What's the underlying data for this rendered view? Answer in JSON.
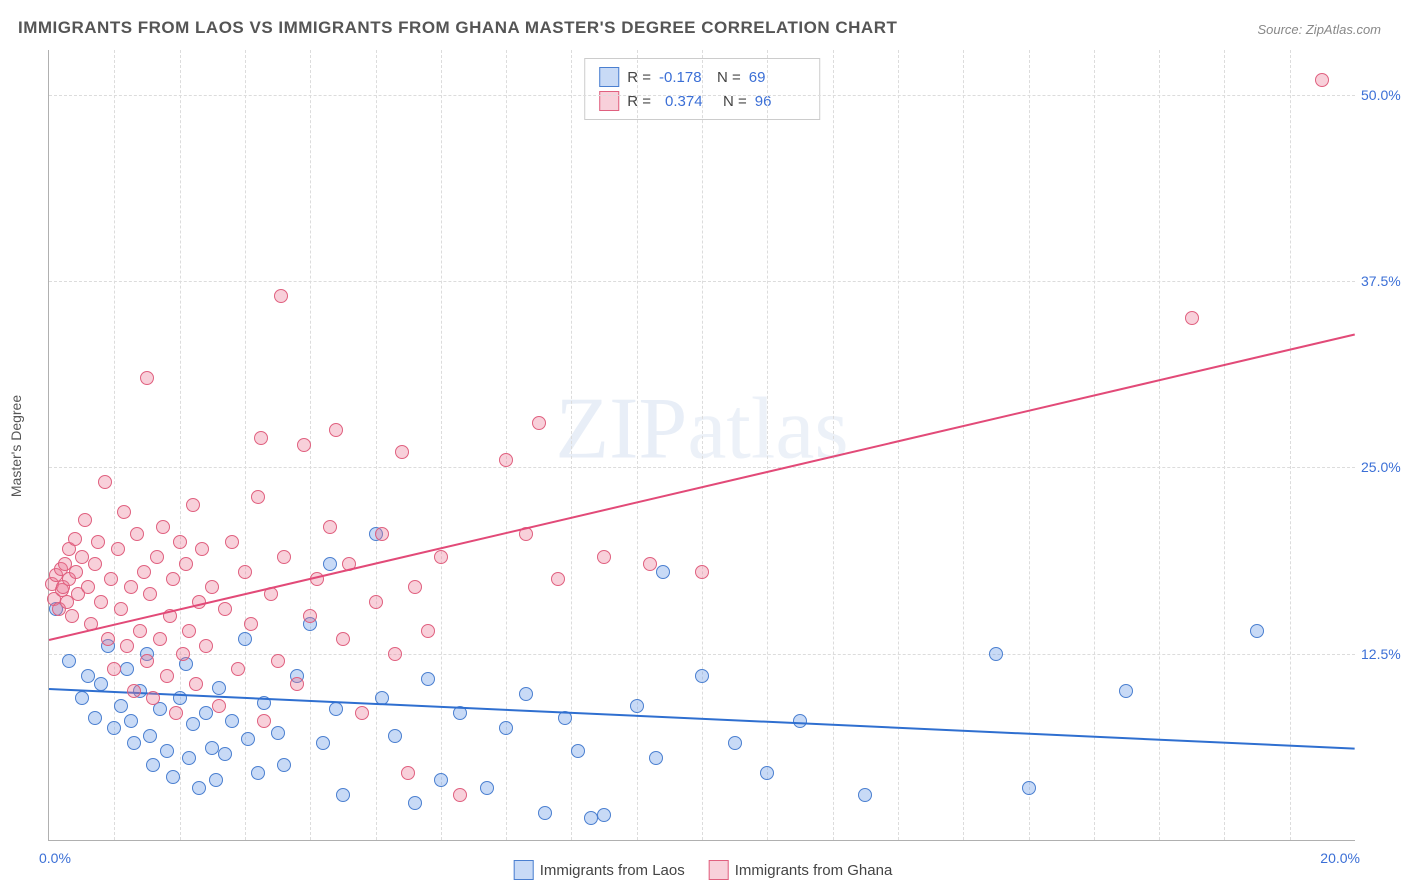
{
  "title": "IMMIGRANTS FROM LAOS VS IMMIGRANTS FROM GHANA MASTER'S DEGREE CORRELATION CHART",
  "source": "Source: ZipAtlas.com",
  "yaxis_title": "Master's Degree",
  "watermark_a": "ZIP",
  "watermark_b": "atlas",
  "chart": {
    "type": "scatter",
    "xlim": [
      0,
      20
    ],
    "ylim": [
      0,
      53
    ],
    "xtick_labels": {
      "0": "0.0%",
      "20": "20.0%"
    },
    "ytick_labels": {
      "12.5": "12.5%",
      "25": "25.0%",
      "37.5": "37.5%",
      "50": "50.0%"
    },
    "x_gridlines": [
      1,
      2,
      3,
      4,
      5,
      6,
      7,
      8,
      9,
      10,
      11,
      12,
      13,
      14,
      15,
      16,
      17,
      18,
      19
    ],
    "y_gridlines": [
      12.5,
      25,
      37.5,
      50
    ],
    "background_color": "#ffffff",
    "grid_color": "#dcdcdc",
    "marker_radius": 7,
    "marker_border": 1.2,
    "series": [
      {
        "name": "Immigrants from Laos",
        "fill": "rgba(96,150,230,0.35)",
        "stroke": "#4a7fd0",
        "r_label": "R =",
        "r_value": "-0.178",
        "n_label": "N =",
        "n_value": "69",
        "trend": {
          "x1": 0,
          "y1": 10.2,
          "x2": 20,
          "y2": 6.2,
          "color": "#2f6fd0",
          "width": 2
        },
        "points": [
          [
            0.1,
            15.5
          ],
          [
            0.3,
            12.0
          ],
          [
            0.5,
            9.5
          ],
          [
            0.6,
            11.0
          ],
          [
            0.7,
            8.2
          ],
          [
            0.8,
            10.5
          ],
          [
            0.9,
            13.0
          ],
          [
            1.0,
            7.5
          ],
          [
            1.1,
            9.0
          ],
          [
            1.2,
            11.5
          ],
          [
            1.25,
            8.0
          ],
          [
            1.3,
            6.5
          ],
          [
            1.4,
            10.0
          ],
          [
            1.5,
            12.5
          ],
          [
            1.55,
            7.0
          ],
          [
            1.6,
            5.0
          ],
          [
            1.7,
            8.8
          ],
          [
            1.8,
            6.0
          ],
          [
            1.9,
            4.2
          ],
          [
            2.0,
            9.5
          ],
          [
            2.1,
            11.8
          ],
          [
            2.15,
            5.5
          ],
          [
            2.2,
            7.8
          ],
          [
            2.3,
            3.5
          ],
          [
            2.4,
            8.5
          ],
          [
            2.5,
            6.2
          ],
          [
            2.55,
            4.0
          ],
          [
            2.6,
            10.2
          ],
          [
            2.7,
            5.8
          ],
          [
            2.8,
            8.0
          ],
          [
            3.0,
            13.5
          ],
          [
            3.05,
            6.8
          ],
          [
            3.2,
            4.5
          ],
          [
            3.3,
            9.2
          ],
          [
            3.5,
            7.2
          ],
          [
            3.6,
            5.0
          ],
          [
            3.8,
            11.0
          ],
          [
            4.0,
            14.5
          ],
          [
            4.2,
            6.5
          ],
          [
            4.3,
            18.5
          ],
          [
            4.4,
            8.8
          ],
          [
            4.5,
            3.0
          ],
          [
            5.0,
            20.5
          ],
          [
            5.1,
            9.5
          ],
          [
            5.3,
            7.0
          ],
          [
            5.6,
            2.5
          ],
          [
            5.8,
            10.8
          ],
          [
            6.0,
            4.0
          ],
          [
            6.3,
            8.5
          ],
          [
            6.7,
            3.5
          ],
          [
            7.0,
            7.5
          ],
          [
            7.3,
            9.8
          ],
          [
            7.6,
            1.8
          ],
          [
            7.9,
            8.2
          ],
          [
            8.1,
            6.0
          ],
          [
            8.3,
            1.5
          ],
          [
            8.5,
            1.7
          ],
          [
            9.0,
            9.0
          ],
          [
            9.3,
            5.5
          ],
          [
            9.4,
            18.0
          ],
          [
            10.0,
            11.0
          ],
          [
            10.5,
            6.5
          ],
          [
            11.0,
            4.5
          ],
          [
            11.5,
            8.0
          ],
          [
            12.5,
            3.0
          ],
          [
            14.5,
            12.5
          ],
          [
            15.0,
            3.5
          ],
          [
            16.5,
            10.0
          ],
          [
            18.5,
            14.0
          ]
        ]
      },
      {
        "name": "Immigrants from Ghana",
        "fill": "rgba(235,120,150,0.35)",
        "stroke": "#e0607f",
        "r_label": "R =",
        "r_value": "0.374",
        "n_label": "N =",
        "n_value": "96",
        "trend": {
          "x1": 0,
          "y1": 13.5,
          "x2": 20,
          "y2": 34.0,
          "color": "#e24a78",
          "width": 2
        },
        "points": [
          [
            0.05,
            17.2
          ],
          [
            0.08,
            16.2
          ],
          [
            0.1,
            17.8
          ],
          [
            0.15,
            15.5
          ],
          [
            0.18,
            18.2
          ],
          [
            0.2,
            16.8
          ],
          [
            0.22,
            17.0
          ],
          [
            0.25,
            18.5
          ],
          [
            0.28,
            16.0
          ],
          [
            0.3,
            17.5
          ],
          [
            0.3,
            19.5
          ],
          [
            0.35,
            15.0
          ],
          [
            0.4,
            20.2
          ],
          [
            0.42,
            18.0
          ],
          [
            0.45,
            16.5
          ],
          [
            0.5,
            19.0
          ],
          [
            0.55,
            21.5
          ],
          [
            0.6,
            17.0
          ],
          [
            0.65,
            14.5
          ],
          [
            0.7,
            18.5
          ],
          [
            0.75,
            20.0
          ],
          [
            0.8,
            16.0
          ],
          [
            0.85,
            24.0
          ],
          [
            0.9,
            13.5
          ],
          [
            0.95,
            17.5
          ],
          [
            1.0,
            11.5
          ],
          [
            1.05,
            19.5
          ],
          [
            1.1,
            15.5
          ],
          [
            1.15,
            22.0
          ],
          [
            1.2,
            13.0
          ],
          [
            1.25,
            17.0
          ],
          [
            1.3,
            10.0
          ],
          [
            1.35,
            20.5
          ],
          [
            1.4,
            14.0
          ],
          [
            1.45,
            18.0
          ],
          [
            1.5,
            12.0
          ],
          [
            1.5,
            31.0
          ],
          [
            1.55,
            16.5
          ],
          [
            1.6,
            9.5
          ],
          [
            1.65,
            19.0
          ],
          [
            1.7,
            13.5
          ],
          [
            1.75,
            21.0
          ],
          [
            1.8,
            11.0
          ],
          [
            1.85,
            15.0
          ],
          [
            1.9,
            17.5
          ],
          [
            1.95,
            8.5
          ],
          [
            2.0,
            20.0
          ],
          [
            2.05,
            12.5
          ],
          [
            2.1,
            18.5
          ],
          [
            2.15,
            14.0
          ],
          [
            2.2,
            22.5
          ],
          [
            2.25,
            10.5
          ],
          [
            2.3,
            16.0
          ],
          [
            2.35,
            19.5
          ],
          [
            2.4,
            13.0
          ],
          [
            2.5,
            17.0
          ],
          [
            2.6,
            9.0
          ],
          [
            2.7,
            15.5
          ],
          [
            2.8,
            20.0
          ],
          [
            2.9,
            11.5
          ],
          [
            3.0,
            18.0
          ],
          [
            3.1,
            14.5
          ],
          [
            3.2,
            23.0
          ],
          [
            3.25,
            27.0
          ],
          [
            3.3,
            8.0
          ],
          [
            3.4,
            16.5
          ],
          [
            3.5,
            12.0
          ],
          [
            3.55,
            36.5
          ],
          [
            3.6,
            19.0
          ],
          [
            3.8,
            10.5
          ],
          [
            3.9,
            26.5
          ],
          [
            4.0,
            15.0
          ],
          [
            4.1,
            17.5
          ],
          [
            4.3,
            21.0
          ],
          [
            4.4,
            27.5
          ],
          [
            4.5,
            13.5
          ],
          [
            4.6,
            18.5
          ],
          [
            4.8,
            8.5
          ],
          [
            5.0,
            16.0
          ],
          [
            5.1,
            20.5
          ],
          [
            5.3,
            12.5
          ],
          [
            5.4,
            26.0
          ],
          [
            5.5,
            4.5
          ],
          [
            5.6,
            17.0
          ],
          [
            5.8,
            14.0
          ],
          [
            6.0,
            19.0
          ],
          [
            6.3,
            3.0
          ],
          [
            7.0,
            25.5
          ],
          [
            7.3,
            20.5
          ],
          [
            7.5,
            28.0
          ],
          [
            7.8,
            17.5
          ],
          [
            8.5,
            19.0
          ],
          [
            9.2,
            18.5
          ],
          [
            10.0,
            18.0
          ],
          [
            17.5,
            35.0
          ],
          [
            19.5,
            51.0
          ]
        ]
      }
    ]
  },
  "legend": {
    "items": [
      {
        "label": "Immigrants from Laos"
      },
      {
        "label": "Immigrants from Ghana"
      }
    ]
  }
}
